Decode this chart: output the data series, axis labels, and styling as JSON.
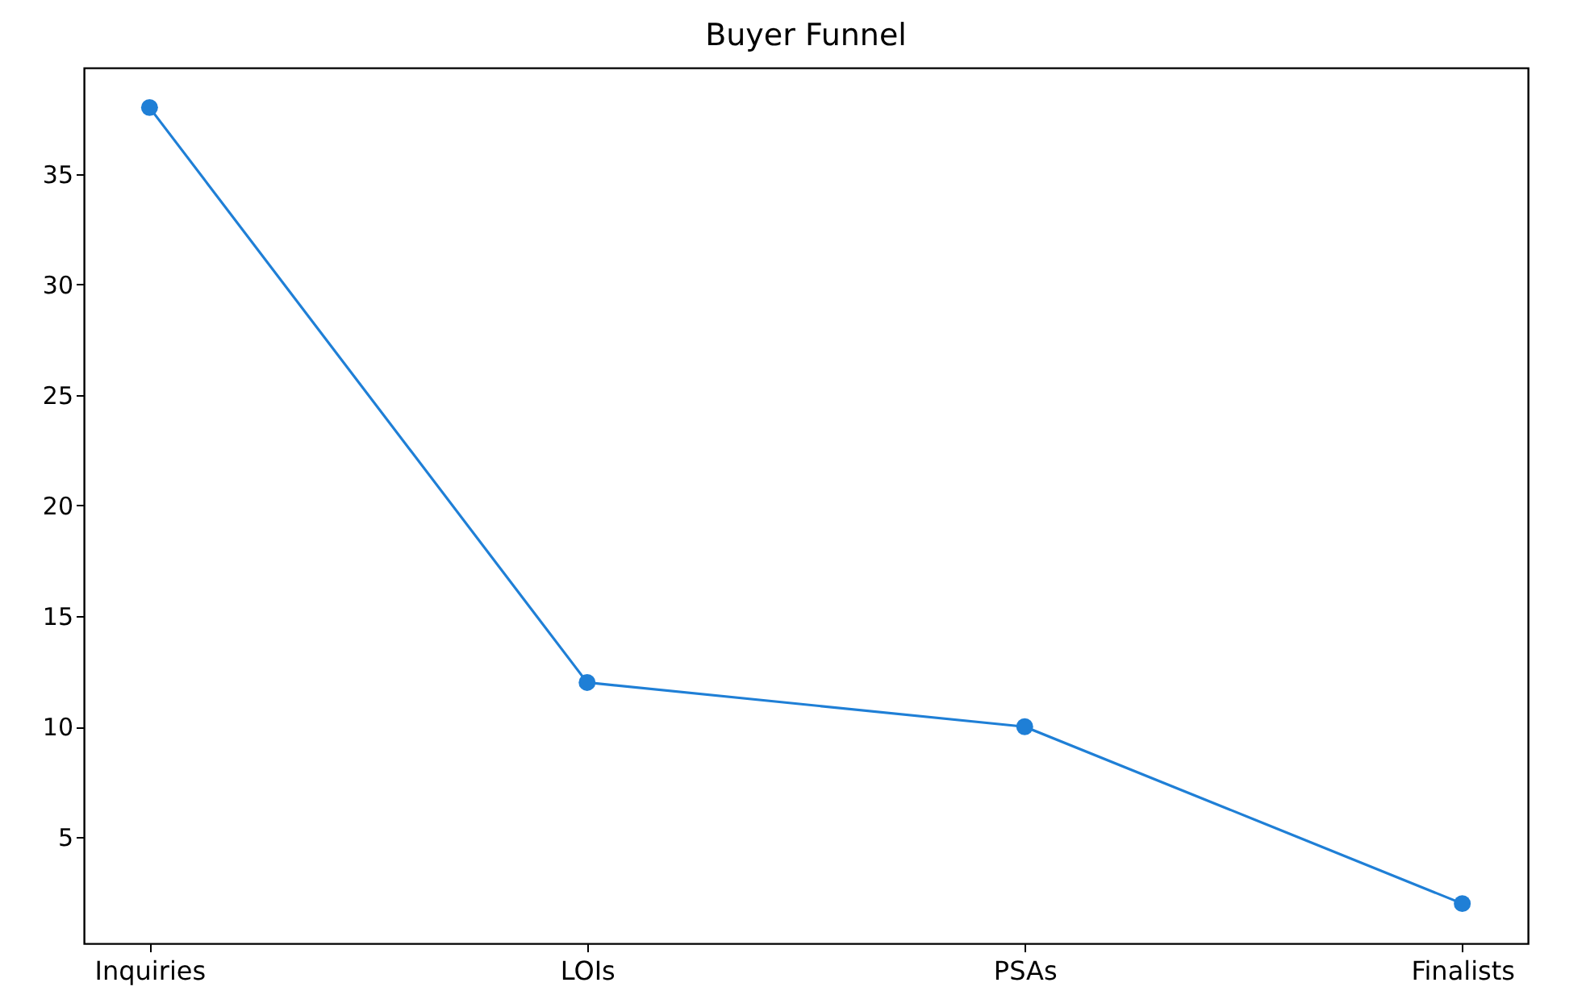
{
  "chart_data": {
    "type": "line",
    "title": "Buyer Funnel",
    "categories": [
      "Inquiries",
      "LOIs",
      "PSAs",
      "Finalists"
    ],
    "series": [
      {
        "color": "#1f7fd6",
        "values": [
          38,
          12,
          10,
          2
        ]
      }
    ],
    "ylim": [
      0.2,
      39.8
    ],
    "yticks": [
      5,
      10,
      15,
      20,
      25,
      30,
      35
    ],
    "grid": false,
    "marker": "circle",
    "line_style": "solid"
  }
}
